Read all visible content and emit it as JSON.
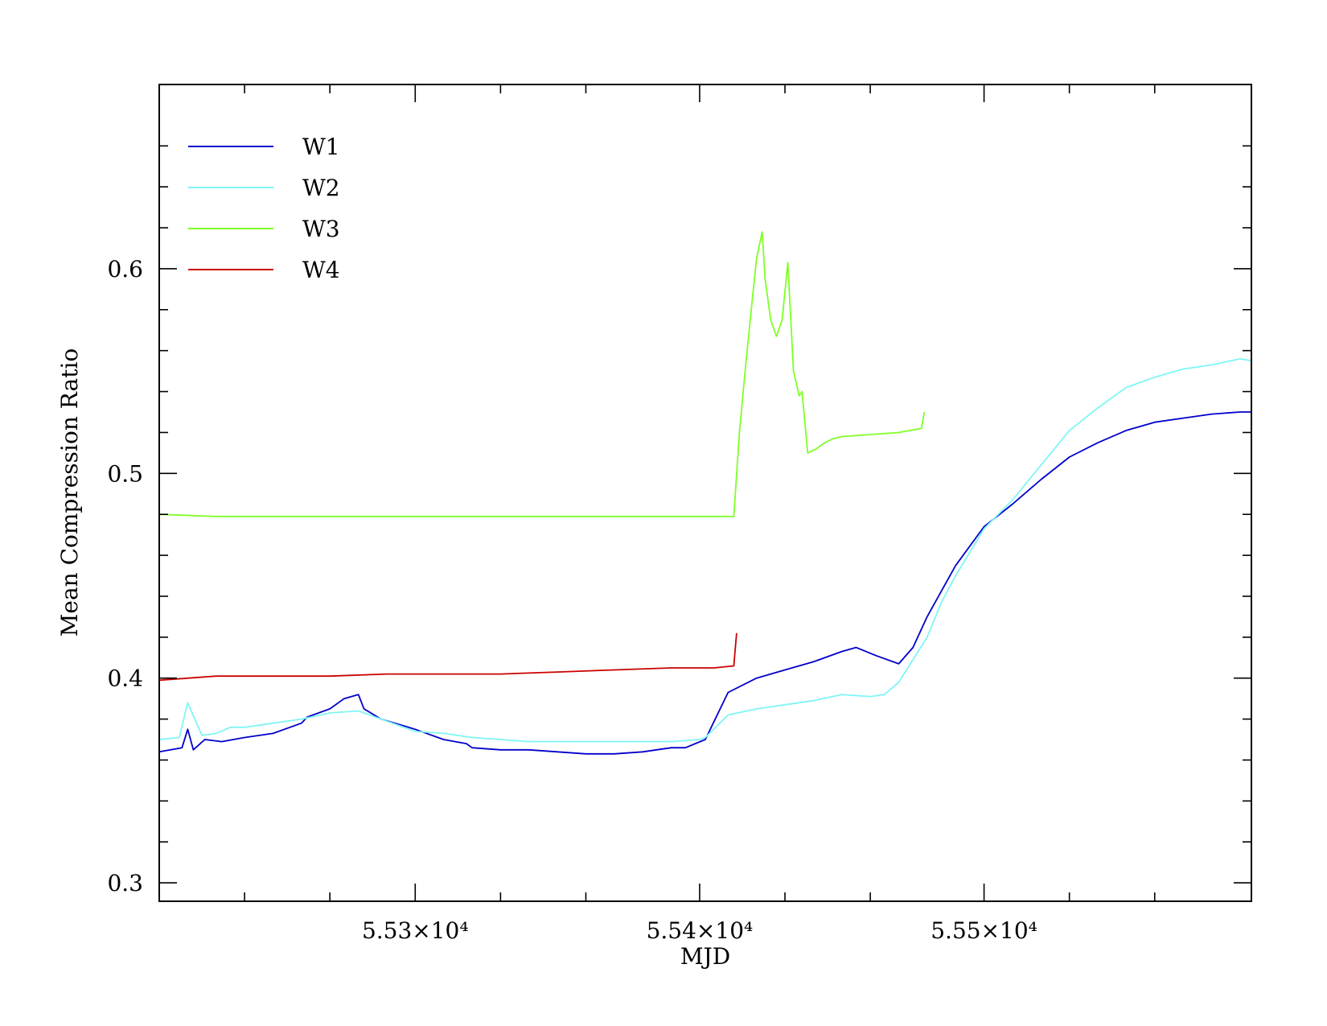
{
  "chart_data": {
    "type": "line",
    "title": "",
    "xlabel": "MJD",
    "ylabel": "Mean Compression Ratio",
    "xlim": [
      55210,
      55594
    ],
    "ylim": [
      0.291,
      0.69
    ],
    "x_ticks": [
      {
        "value": 55300,
        "label": "5.53×10⁴"
      },
      {
        "value": 55400,
        "label": "5.54×10⁴"
      },
      {
        "value": 55500,
        "label": "5.55×10⁴"
      }
    ],
    "x_minor_ticks": [
      55240,
      55270,
      55330,
      55360,
      55430,
      55460,
      55530,
      55560
    ],
    "y_ticks": [
      {
        "value": 0.3,
        "label": "0.3"
      },
      {
        "value": 0.4,
        "label": "0.4"
      },
      {
        "value": 0.5,
        "label": "0.5"
      },
      {
        "value": 0.6,
        "label": "0.6"
      }
    ],
    "y_minor_ticks": [
      0.32,
      0.34,
      0.36,
      0.38,
      0.42,
      0.44,
      0.46,
      0.48,
      0.52,
      0.54,
      0.56,
      0.58,
      0.62,
      0.64,
      0.66
    ],
    "grid": false,
    "legend_position": "top-left",
    "series": [
      {
        "name": "W1",
        "color": "#0000cc",
        "x": [
          55210,
          55218,
          55220,
          55222,
          55226,
          55232,
          55240,
          55250,
          55260,
          55262,
          55270,
          55275,
          55280,
          55282,
          55288,
          55300,
          55310,
          55318,
          55320,
          55330,
          55340,
          55350,
          55360,
          55370,
          55380,
          55390,
          55395,
          55402,
          55410,
          55420,
          55430,
          55440,
          55450,
          55455,
          55462,
          55470,
          55475,
          55480,
          55490,
          55500,
          55510,
          55520,
          55530,
          55540,
          55550,
          55560,
          55570,
          55580,
          55590,
          55594
        ],
        "y": [
          0.364,
          0.366,
          0.375,
          0.365,
          0.37,
          0.369,
          0.371,
          0.373,
          0.378,
          0.381,
          0.385,
          0.39,
          0.392,
          0.385,
          0.38,
          0.375,
          0.37,
          0.368,
          0.366,
          0.365,
          0.365,
          0.364,
          0.363,
          0.363,
          0.364,
          0.366,
          0.366,
          0.37,
          0.393,
          0.4,
          0.404,
          0.408,
          0.413,
          0.415,
          0.411,
          0.407,
          0.415,
          0.43,
          0.455,
          0.474,
          0.485,
          0.497,
          0.508,
          0.515,
          0.521,
          0.525,
          0.527,
          0.529,
          0.53,
          0.53
        ]
      },
      {
        "name": "W2",
        "color": "#7ff5f5",
        "x": [
          55210,
          55217,
          55220,
          55225,
          55230,
          55235,
          55240,
          55250,
          55260,
          55270,
          55280,
          55290,
          55300,
          55310,
          55320,
          55330,
          55340,
          55350,
          55360,
          55370,
          55380,
          55390,
          55400,
          55402,
          55410,
          55420,
          55430,
          55440,
          55450,
          55460,
          55465,
          55470,
          55480,
          55485,
          55490,
          55500,
          55510,
          55520,
          55530,
          55540,
          55550,
          55560,
          55570,
          55580,
          55590,
          55594
        ],
        "y": [
          0.37,
          0.371,
          0.388,
          0.372,
          0.373,
          0.376,
          0.376,
          0.378,
          0.38,
          0.383,
          0.384,
          0.379,
          0.374,
          0.373,
          0.371,
          0.37,
          0.369,
          0.369,
          0.369,
          0.369,
          0.369,
          0.369,
          0.37,
          0.371,
          0.382,
          0.385,
          0.387,
          0.389,
          0.392,
          0.391,
          0.392,
          0.398,
          0.42,
          0.437,
          0.45,
          0.473,
          0.487,
          0.504,
          0.521,
          0.532,
          0.542,
          0.547,
          0.551,
          0.553,
          0.556,
          0.555
        ]
      },
      {
        "name": "W3",
        "color": "#80ff26",
        "x": [
          55210,
          55230,
          55260,
          55290,
          55310,
          55340,
          55370,
          55400,
          55412,
          55414,
          55416,
          55418,
          55420,
          55422,
          55423,
          55425,
          55427,
          55429,
          55431,
          55433,
          55435,
          55436,
          55438,
          55441,
          55444,
          55447,
          55450,
          55460,
          55470,
          55478,
          55479
        ],
        "y": [
          0.48,
          0.479,
          0.479,
          0.479,
          0.479,
          0.479,
          0.479,
          0.479,
          0.479,
          0.52,
          0.55,
          0.578,
          0.605,
          0.618,
          0.595,
          0.575,
          0.567,
          0.575,
          0.603,
          0.55,
          0.538,
          0.54,
          0.51,
          0.512,
          0.515,
          0.517,
          0.518,
          0.519,
          0.52,
          0.522,
          0.53
        ]
      },
      {
        "name": "W4",
        "color": "#cc0000",
        "x": [
          55210,
          55230,
          55250,
          55270,
          55290,
          55310,
          55330,
          55350,
          55370,
          55390,
          55405,
          55412,
          55413
        ],
        "y": [
          0.399,
          0.401,
          0.401,
          0.401,
          0.402,
          0.402,
          0.402,
          0.403,
          0.404,
          0.405,
          0.405,
          0.406,
          0.422
        ]
      }
    ]
  }
}
